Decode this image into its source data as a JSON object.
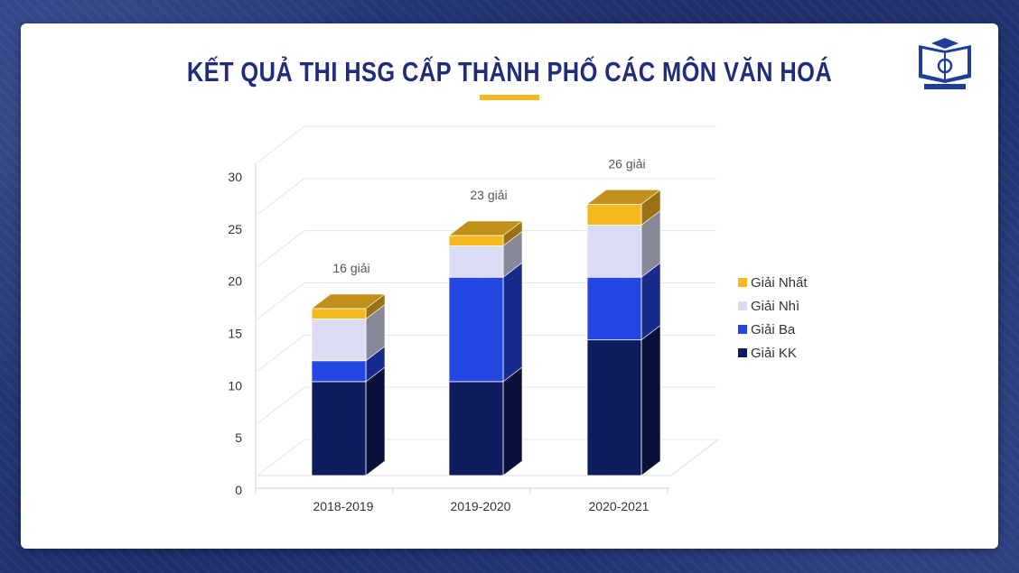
{
  "header": {
    "title": "KẾT QUẢ THI HSG CẤP THÀNH PHỐ CÁC MÔN VĂN HOÁ",
    "logo_icon": "school-book-logo-icon"
  },
  "colors": {
    "title": "#1f2d7a",
    "accent": "#f6b81f"
  },
  "chart_data": {
    "type": "bar",
    "stacked": true,
    "style": "3d",
    "categories": [
      "2018-2019",
      "2019-2020",
      "2020-2021"
    ],
    "series": [
      {
        "name": "Giải KK",
        "values": [
          9,
          9,
          13
        ],
        "color": "#0f1c5e"
      },
      {
        "name": "Giải Ba",
        "values": [
          2,
          10,
          6
        ],
        "color": "#2446e2"
      },
      {
        "name": "Giải Nhì",
        "values": [
          4,
          3,
          5
        ],
        "color": "#d9dcf3"
      },
      {
        "name": "Giải Nhất",
        "values": [
          1,
          1,
          2
        ],
        "color": "#f6b81f"
      }
    ],
    "totals": [
      "16 giải",
      "23 giải",
      "26 giải"
    ],
    "y_ticks": [
      "0",
      "5",
      "10",
      "15",
      "20",
      "25",
      "30"
    ],
    "ylim": [
      0,
      30
    ],
    "grid": true,
    "legend_position": "right"
  }
}
